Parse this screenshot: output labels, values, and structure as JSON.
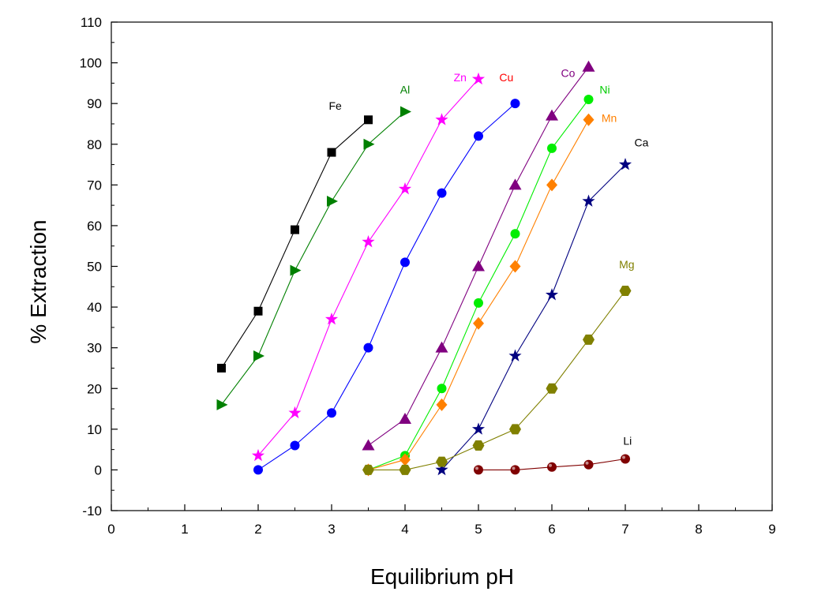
{
  "chart_data": {
    "type": "scatter",
    "title": "",
    "xlabel": "Equilibrium pH",
    "ylabel": "% Extraction",
    "xlim": [
      0,
      9
    ],
    "ylim": [
      -10,
      110
    ],
    "xticks": [
      0,
      1,
      2,
      3,
      4,
      5,
      6,
      7,
      8,
      9
    ],
    "yticks": [
      -10,
      0,
      10,
      20,
      30,
      40,
      50,
      60,
      70,
      80,
      90,
      100,
      110
    ],
    "grid": false,
    "legend": "none",
    "series": [
      {
        "name": "Fe",
        "color": "#000000",
        "marker": "square",
        "x": [
          1.5,
          2,
          2.5,
          3,
          3.5
        ],
        "y": [
          25,
          39,
          59,
          78,
          86
        ]
      },
      {
        "name": "Al",
        "color": "#008000",
        "marker": "triangle-right",
        "x": [
          1.5,
          2,
          2.5,
          3,
          3.5,
          4
        ],
        "y": [
          16,
          28,
          49,
          66,
          80,
          88
        ]
      },
      {
        "name": "Zn",
        "color": "#ff00ff",
        "marker": "star",
        "x": [
          2,
          2.5,
          3,
          3.5,
          4,
          4.5,
          5
        ],
        "y": [
          3.5,
          14,
          37,
          56,
          69,
          86,
          96
        ]
      },
      {
        "name": "Cu",
        "color": "#0000ff",
        "marker": "circle",
        "x": [
          2,
          2.5,
          3,
          3.5,
          4,
          4.5,
          5,
          5.5
        ],
        "y": [
          0,
          6,
          14,
          30,
          51,
          68,
          82,
          90
        ]
      },
      {
        "name": "Co",
        "color": "#800080",
        "marker": "triangle-up",
        "x": [
          3.5,
          4,
          4.5,
          5,
          5.5,
          6,
          6.5
        ],
        "y": [
          6,
          12.5,
          30,
          50,
          70,
          87,
          99
        ]
      },
      {
        "name": "Ni",
        "color": "#00ee00",
        "marker": "circle",
        "x": [
          3.5,
          4,
          4.5,
          5,
          5.5,
          6,
          6.5
        ],
        "y": [
          0,
          3.5,
          20,
          41,
          58,
          79,
          91
        ]
      },
      {
        "name": "Mn",
        "color": "#ff8000",
        "marker": "diamond",
        "x": [
          3.5,
          4,
          4.5,
          5,
          5.5,
          6,
          6.5
        ],
        "y": [
          0,
          2.5,
          16,
          36,
          50,
          70,
          86
        ]
      },
      {
        "name": "Ca",
        "color": "#000080",
        "marker": "star",
        "x": [
          4.5,
          5,
          5.5,
          6,
          6.5,
          7
        ],
        "y": [
          0,
          10,
          28,
          43,
          66,
          75
        ]
      },
      {
        "name": "Mg",
        "color": "#808000",
        "marker": "hexagon",
        "x": [
          3.5,
          4,
          4.5,
          5,
          5.5,
          6,
          6.5,
          7
        ],
        "y": [
          0,
          0,
          2,
          6,
          10,
          20,
          32,
          44
        ]
      },
      {
        "name": "Li",
        "color": "#800000",
        "marker": "sphere",
        "x": [
          5,
          5.5,
          6,
          6.5,
          7
        ],
        "y": [
          0,
          0,
          0.7,
          1.3,
          2.7
        ]
      }
    ],
    "labels": [
      {
        "text": "Fe",
        "color": "#000000",
        "x": 3.05,
        "y": 88.5
      },
      {
        "text": "Al",
        "color": "#008000",
        "x": 4.0,
        "y": 92.5
      },
      {
        "text": "Zn",
        "color": "#ff00ff",
        "x": 4.75,
        "y": 95.5
      },
      {
        "text": "Cu",
        "color": "#ff0000",
        "x": 5.38,
        "y": 95.5
      },
      {
        "text": "Co",
        "color": "#800080",
        "x": 6.22,
        "y": 96.5
      },
      {
        "text": "Ni",
        "color": "#00cc00",
        "x": 6.72,
        "y": 92.5
      },
      {
        "text": "Mn",
        "color": "#ff8000",
        "x": 6.78,
        "y": 85.5
      },
      {
        "text": "Ca",
        "color": "#000000",
        "x": 7.22,
        "y": 79.5
      },
      {
        "text": "Mg",
        "color": "#808000",
        "x": 7.02,
        "y": 49.5
      },
      {
        "text": "Li",
        "color": "#000000",
        "x": 7.03,
        "y": 6.2
      }
    ]
  }
}
